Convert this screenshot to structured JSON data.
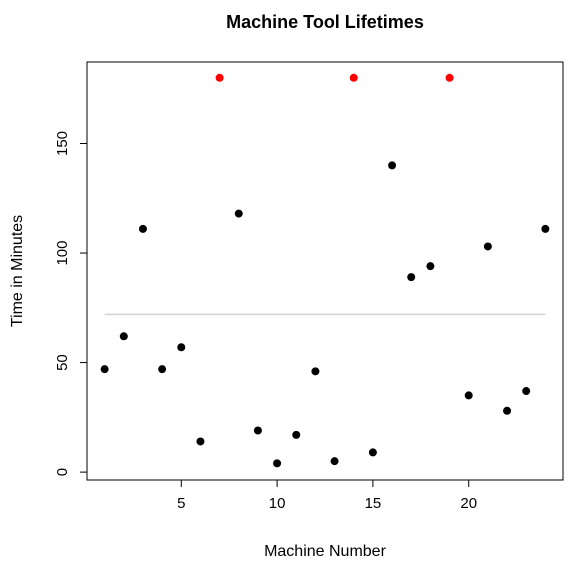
{
  "chart_data": {
    "type": "scatter",
    "title": "Machine Tool Lifetimes",
    "xlabel": "Machine Number",
    "ylabel": "Time in Minutes",
    "xlim": [
      0.08,
      24.92
    ],
    "ylim": [
      -3.6,
      187.2
    ],
    "xticks": [
      5,
      10,
      15,
      20
    ],
    "yticks": [
      0,
      50,
      100,
      150
    ],
    "grid": false,
    "legend": "none",
    "point_color": "#000000",
    "censored_color": "#ff0000",
    "reference_line": {
      "y": 72,
      "x_from": 1,
      "x_to": 24,
      "color": "#d3d3d3"
    },
    "points": [
      {
        "x": 1,
        "y": 47,
        "censored": false
      },
      {
        "x": 2,
        "y": 62,
        "censored": false
      },
      {
        "x": 3,
        "y": 111,
        "censored": false
      },
      {
        "x": 4,
        "y": 47,
        "censored": false
      },
      {
        "x": 5,
        "y": 57,
        "censored": false
      },
      {
        "x": 6,
        "y": 14,
        "censored": false
      },
      {
        "x": 7,
        "y": 180,
        "censored": true
      },
      {
        "x": 8,
        "y": 118,
        "censored": false
      },
      {
        "x": 9,
        "y": 19,
        "censored": false
      },
      {
        "x": 10,
        "y": 4,
        "censored": false
      },
      {
        "x": 11,
        "y": 17,
        "censored": false
      },
      {
        "x": 12,
        "y": 46,
        "censored": false
      },
      {
        "x": 13,
        "y": 5,
        "censored": false
      },
      {
        "x": 14,
        "y": 180,
        "censored": true
      },
      {
        "x": 15,
        "y": 9,
        "censored": false
      },
      {
        "x": 16,
        "y": 140,
        "censored": false
      },
      {
        "x": 17,
        "y": 89,
        "censored": false
      },
      {
        "x": 18,
        "y": 94,
        "censored": false
      },
      {
        "x": 19,
        "y": 180,
        "censored": true
      },
      {
        "x": 20,
        "y": 35,
        "censored": false
      },
      {
        "x": 21,
        "y": 103,
        "censored": false
      },
      {
        "x": 22,
        "y": 28,
        "censored": false
      },
      {
        "x": 23,
        "y": 37,
        "censored": false
      },
      {
        "x": 24,
        "y": 111,
        "censored": false
      }
    ]
  }
}
